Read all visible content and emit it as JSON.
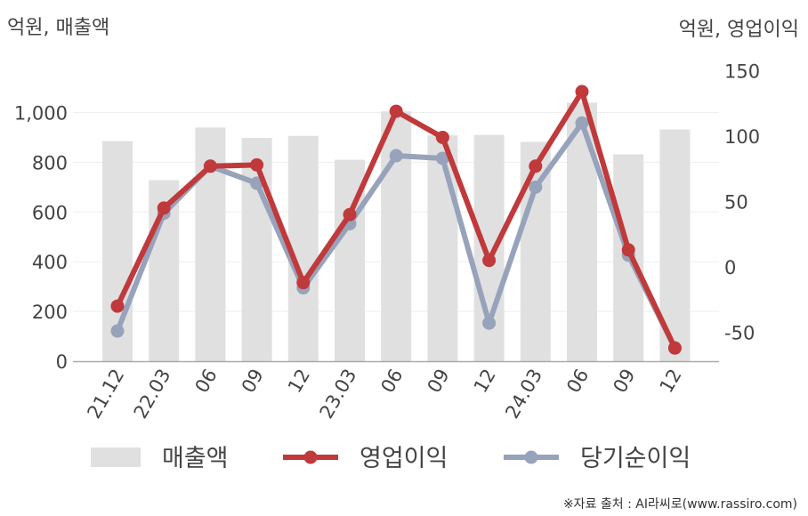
{
  "chart_data": {
    "type": "bar+line",
    "left_unit": "억원, 매출액",
    "right_unit": "억원, 영업이익",
    "categories": [
      "21.12",
      "22.03",
      "06",
      "09",
      "12",
      "23.03",
      "06",
      "09",
      "12",
      "24.03",
      "06",
      "09",
      "12"
    ],
    "series": [
      {
        "name": "매출액",
        "type": "bar",
        "axis": "left",
        "color": "#e0e0e0",
        "values": [
          885,
          728,
          940,
          898,
          906,
          810,
          1005,
          908,
          910,
          882,
          1040,
          832,
          932
        ]
      },
      {
        "name": "영업이익",
        "type": "line",
        "axis": "right",
        "color": "#c0393b",
        "values": [
          -30,
          45,
          77,
          78,
          -12,
          40,
          119,
          99,
          5,
          77,
          134,
          13,
          -62
        ]
      },
      {
        "name": "당기순이익",
        "type": "line",
        "axis": "right",
        "color": "#97a2bb",
        "values": [
          -49,
          41,
          77,
          64,
          -16,
          33,
          85,
          83,
          -43,
          61,
          110,
          9,
          -62
        ]
      }
    ],
    "left_axis": {
      "min": 0,
      "max": 1000,
      "ticks": [
        "0",
        "200",
        "400",
        "600",
        "800",
        "1,000"
      ],
      "tick_values": [
        0,
        200,
        400,
        600,
        800,
        1000
      ]
    },
    "right_axis": {
      "min": -50,
      "max": 150,
      "ticks": [
        "-50",
        "0",
        "50",
        "100",
        "150"
      ],
      "tick_values": [
        -50,
        0,
        50,
        100,
        150
      ]
    },
    "legend": [
      "매출액",
      "영업이익",
      "당기순이익"
    ],
    "legend_position": "bottom",
    "grid": true
  },
  "source": "※자료 출처 : AI라씨로(www.rassiro.com)"
}
